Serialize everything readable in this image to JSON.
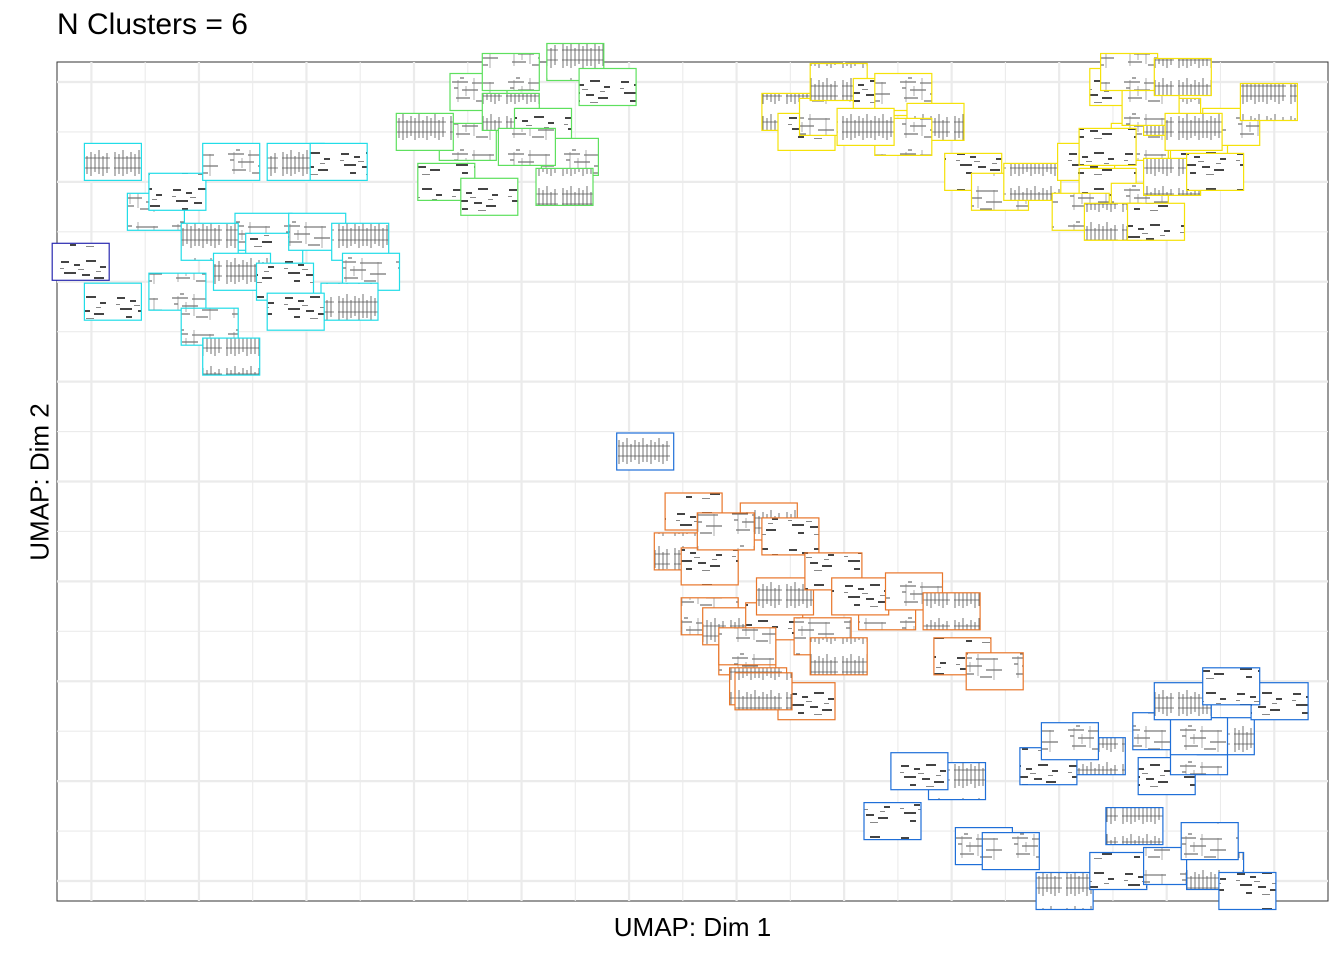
{
  "title": "N Clusters = 6",
  "chart_data": {
    "type": "scatter",
    "title": "N Clusters = 6",
    "xlabel": "UMAP: Dim 1",
    "ylabel": "UMAP: Dim 2",
    "xlim": [
      -0.32,
      11.5
    ],
    "ylim": [
      -0.7,
      7.7
    ],
    "grid": true,
    "tick_labels_shown": false,
    "marker": "spectrogram-thumbnail",
    "series": [
      {
        "color": "#22DDE8",
        "points": [
          [
            0.6,
            6.2
          ],
          [
            0.2,
            6.7
          ],
          [
            0.8,
            6.4
          ],
          [
            1.3,
            6.7
          ],
          [
            1.9,
            6.7
          ],
          [
            2.3,
            6.7
          ],
          [
            1.6,
            6.0
          ],
          [
            1.1,
            5.9
          ],
          [
            1.7,
            5.8
          ],
          [
            2.1,
            6.0
          ],
          [
            2.5,
            5.9
          ],
          [
            0.2,
            5.3
          ],
          [
            0.8,
            5.4
          ],
          [
            1.4,
            5.6
          ],
          [
            1.8,
            5.5
          ],
          [
            2.6,
            5.6
          ],
          [
            2.4,
            5.3
          ],
          [
            1.9,
            5.2
          ],
          [
            1.1,
            5.05
          ],
          [
            1.3,
            4.75
          ]
        ]
      },
      {
        "color": "#2A2AB0",
        "points": [
          [
            -0.1,
            5.7
          ]
        ]
      },
      {
        "color": "#5EE05E",
        "points": [
          [
            3.5,
            6.9
          ],
          [
            3.1,
            7.0
          ],
          [
            3.3,
            6.5
          ],
          [
            3.6,
            7.4
          ],
          [
            3.9,
            7.2
          ],
          [
            4.2,
            7.05
          ],
          [
            4.45,
            6.75
          ],
          [
            4.4,
            6.45
          ],
          [
            3.7,
            6.35
          ],
          [
            4.05,
            6.85
          ],
          [
            4.5,
            7.7
          ],
          [
            4.8,
            7.45
          ],
          [
            3.9,
            7.6
          ]
        ]
      },
      {
        "color": "#1F6FD8",
        "points": [
          [
            5.15,
            3.8
          ],
          [
            7.45,
            0.1
          ],
          [
            8.3,
            -0.15
          ],
          [
            9.05,
            -0.6
          ],
          [
            9.55,
            -0.4
          ],
          [
            10.05,
            -0.35
          ],
          [
            10.45,
            -0.4
          ],
          [
            10.75,
            -0.6
          ],
          [
            10.4,
            -0.1
          ],
          [
            9.7,
            0.05
          ],
          [
            10.0,
            0.55
          ],
          [
            10.3,
            0.75
          ],
          [
            9.35,
            0.75
          ],
          [
            8.9,
            0.65
          ],
          [
            8.55,
            -0.2
          ],
          [
            8.05,
            0.5
          ],
          [
            7.7,
            0.6
          ],
          [
            9.95,
            1.0
          ],
          [
            10.55,
            0.95
          ],
          [
            11.05,
            1.3
          ],
          [
            10.3,
            0.95
          ],
          [
            10.15,
            1.3
          ],
          [
            10.6,
            1.45
          ],
          [
            9.1,
            0.9
          ]
        ]
      },
      {
        "color": "#E8762A",
        "points": [
          [
            6.3,
            3.1
          ],
          [
            6.5,
            2.95
          ],
          [
            6.1,
            1.75
          ],
          [
            6.2,
            1.45
          ],
          [
            6.65,
            1.3
          ],
          [
            5.75,
            2.15
          ],
          [
            5.95,
            2.05
          ],
          [
            6.35,
            2.1
          ],
          [
            6.8,
            1.95
          ],
          [
            6.45,
            2.35
          ],
          [
            6.9,
            2.6
          ],
          [
            7.4,
            2.2
          ],
          [
            5.5,
            2.8
          ],
          [
            5.75,
            2.65
          ],
          [
            6.1,
            1.85
          ],
          [
            6.25,
            1.4
          ],
          [
            7.15,
            2.35
          ],
          [
            7.65,
            2.4
          ],
          [
            8.0,
            2.2
          ],
          [
            8.1,
            1.75
          ],
          [
            8.4,
            1.6
          ],
          [
            6.95,
            1.75
          ],
          [
            5.6,
            3.2
          ],
          [
            5.9,
            3.0
          ]
        ]
      },
      {
        "color": "#F5E20A",
        "points": [
          [
            6.5,
            7.2
          ],
          [
            6.65,
            7.0
          ],
          [
            6.85,
            7.15
          ],
          [
            6.95,
            7.5
          ],
          [
            7.35,
            7.35
          ],
          [
            7.55,
            7.4
          ],
          [
            7.85,
            7.1
          ],
          [
            8.2,
            6.6
          ],
          [
            8.45,
            6.4
          ],
          [
            8.75,
            6.5
          ],
          [
            9.25,
            6.7
          ],
          [
            9.75,
            6.9
          ],
          [
            10.05,
            7.15
          ],
          [
            10.3,
            6.9
          ],
          [
            10.6,
            7.05
          ],
          [
            10.95,
            7.3
          ],
          [
            9.55,
            7.45
          ],
          [
            9.85,
            7.25
          ],
          [
            10.25,
            7.0
          ],
          [
            9.45,
            6.85
          ],
          [
            9.65,
            7.6
          ],
          [
            10.15,
            7.55
          ],
          [
            9.45,
            6.45
          ],
          [
            9.75,
            6.3
          ],
          [
            10.05,
            6.55
          ],
          [
            10.45,
            6.6
          ],
          [
            9.2,
            6.2
          ],
          [
            9.5,
            6.1
          ],
          [
            9.9,
            6.1
          ],
          [
            7.55,
            6.95
          ],
          [
            7.2,
            7.05
          ]
        ]
      }
    ]
  }
}
